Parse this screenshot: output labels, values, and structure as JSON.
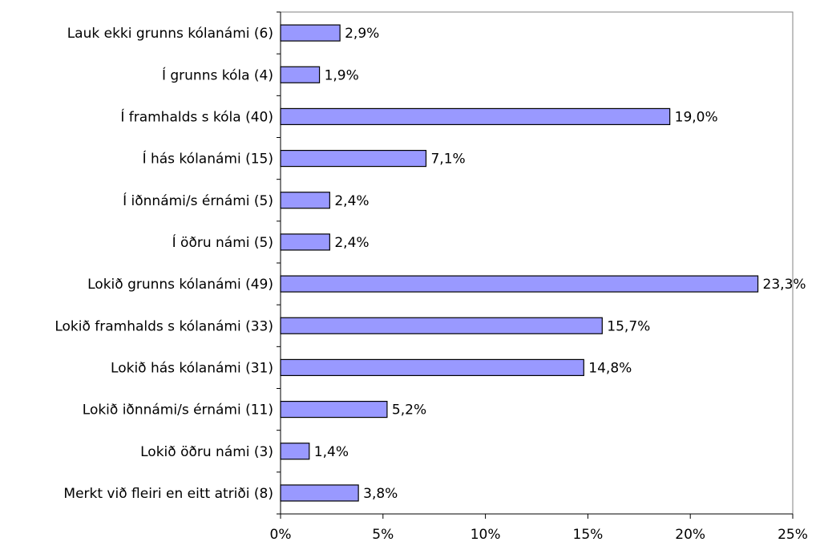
{
  "chart_data": {
    "type": "bar",
    "orientation": "horizontal",
    "categories": [
      "Lauk ekki grunns kólanámi (6)",
      "Í grunns kóla (4)",
      "Í framhalds s kóla (40)",
      "Í hás kólanámi (15)",
      "Í iðnnámi/s érnámi (5)",
      "Í öðru námi (5)",
      "Lokið grunns kólanámi (49)",
      "Lokið framhalds s kólanámi (33)",
      "Lokið hás kólanámi (31)",
      "Lokið iðnnámi/s érnámi (11)",
      "Lokið öðru námi (3)",
      "Merkt við fleiri en eitt atriði  (8)"
    ],
    "values": [
      2.9,
      1.9,
      19.0,
      7.1,
      2.4,
      2.4,
      23.3,
      15.7,
      14.8,
      5.2,
      1.4,
      3.8
    ],
    "value_labels": [
      "2,9%",
      "1,9%",
      "19,0%",
      "7,1%",
      "2,4%",
      "2,4%",
      "23,3%",
      "15,7%",
      "14,8%",
      "5,2%",
      "1,4%",
      "3,8%"
    ],
    "xlim": [
      0,
      25
    ],
    "xticks": [
      0,
      5,
      10,
      15,
      20,
      25
    ],
    "xtick_labels": [
      "0%",
      "5%",
      "10%",
      "15%",
      "20%",
      "25%"
    ],
    "bar_color": "#9999ff",
    "bar_edge_color": "#000000",
    "grid": false,
    "legend": "none",
    "title": "",
    "xlabel": "",
    "ylabel": ""
  }
}
